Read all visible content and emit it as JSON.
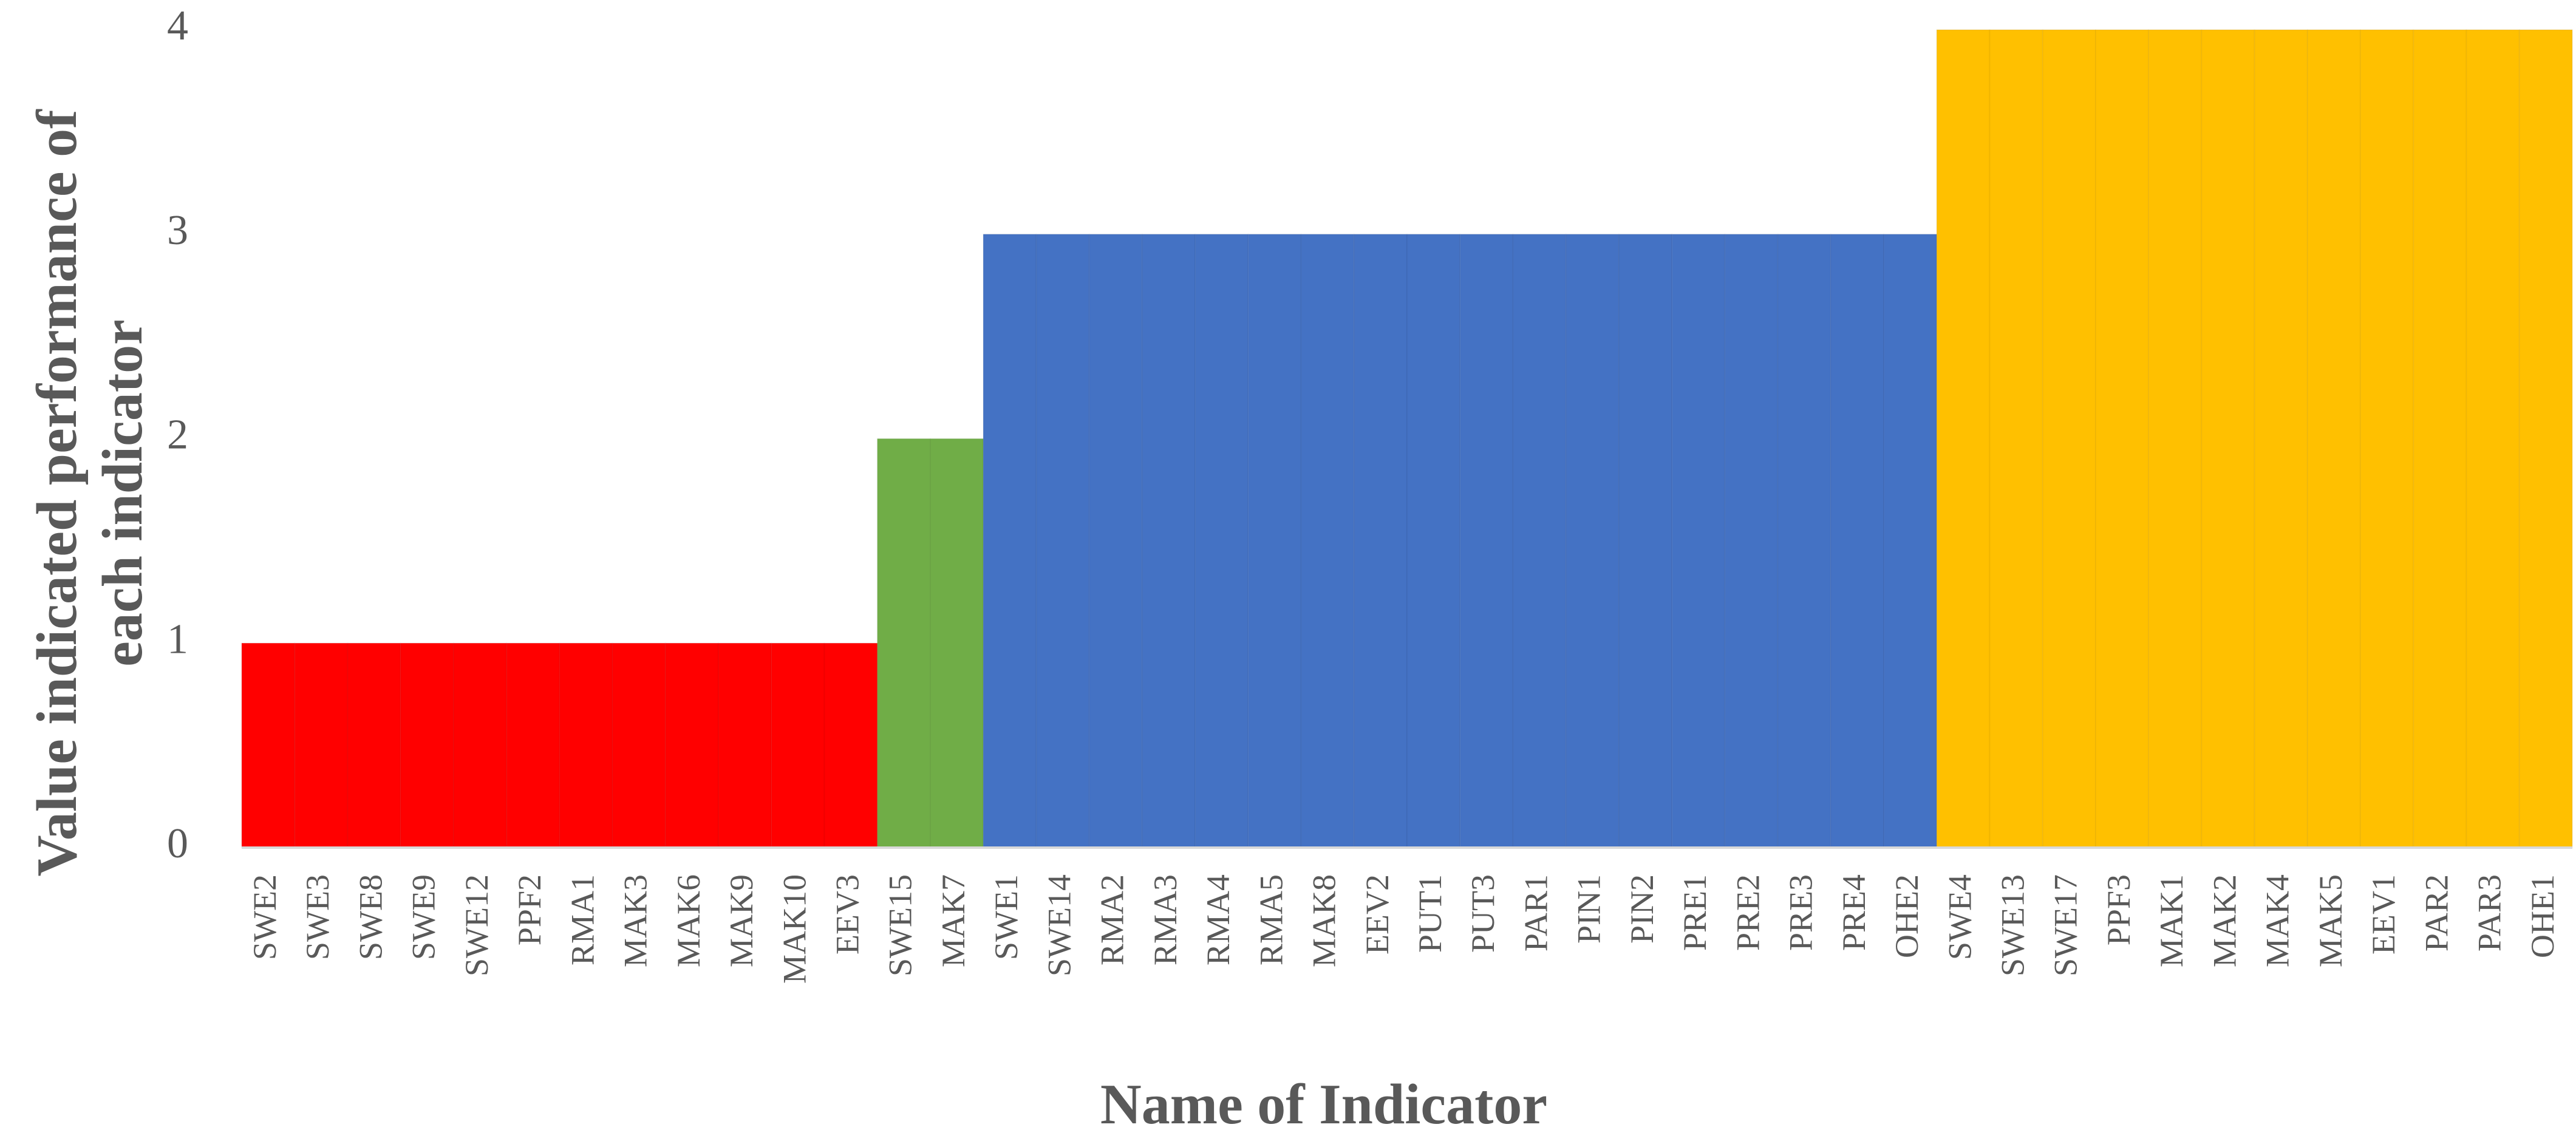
{
  "chart_data": {
    "type": "bar",
    "xlabel": "Name of  Indicator",
    "ylabel": [
      "Value indicated performance of",
      "each indicator"
    ],
    "categories": [
      "SWE2",
      "SWE3",
      "SWE8",
      "SWE9",
      "SWE12",
      "PPF2",
      "RMA1",
      "MAK3",
      "MAK6",
      "MAK9",
      "MAK10",
      "EEV3",
      "SWE15",
      "MAK7",
      "SWE1",
      "SWE14",
      "RMA2",
      "RMA3",
      "RMA4",
      "RMA5",
      "MAK8",
      "EEV2",
      "PUT1",
      "PUT3",
      "PAR1",
      "PIN1",
      "PIN2",
      "PRE1",
      "PRE2",
      "PRE3",
      "PRE4",
      "OHE2",
      "SWE4",
      "SWE13",
      "SWE17",
      "PPF3",
      "MAK1",
      "MAK2",
      "MAK4",
      "MAK5",
      "EEV1",
      "PAR2",
      "PAR3",
      "OHE1"
    ],
    "values": [
      1,
      1,
      1,
      1,
      1,
      1,
      1,
      1,
      1,
      1,
      1,
      1,
      2,
      2,
      3,
      3,
      3,
      3,
      3,
      3,
      3,
      3,
      3,
      3,
      3,
      3,
      3,
      3,
      3,
      3,
      3,
      3,
      4,
      4,
      4,
      4,
      4,
      4,
      4,
      4,
      4,
      4,
      4,
      4
    ],
    "colors": [
      "#ff0000",
      "#ff0000",
      "#ff0000",
      "#ff0000",
      "#ff0000",
      "#ff0000",
      "#ff0000",
      "#ff0000",
      "#ff0000",
      "#ff0000",
      "#ff0000",
      "#ff0000",
      "#70ad47",
      "#70ad47",
      "#4472c4",
      "#4472c4",
      "#4472c4",
      "#4472c4",
      "#4472c4",
      "#4472c4",
      "#4472c4",
      "#4472c4",
      "#4472c4",
      "#4472c4",
      "#4472c4",
      "#4472c4",
      "#4472c4",
      "#4472c4",
      "#4472c4",
      "#4472c4",
      "#4472c4",
      "#4472c4",
      "#ffc000",
      "#ffc000",
      "#ffc000",
      "#ffc000",
      "#ffc000",
      "#ffc000",
      "#ffc000",
      "#ffc000",
      "#ffc000",
      "#ffc000",
      "#ffc000",
      "#ffc000"
    ],
    "ylim": [
      0,
      4
    ],
    "yticks": [
      0,
      1,
      2,
      3,
      4
    ],
    "grid": false
  }
}
